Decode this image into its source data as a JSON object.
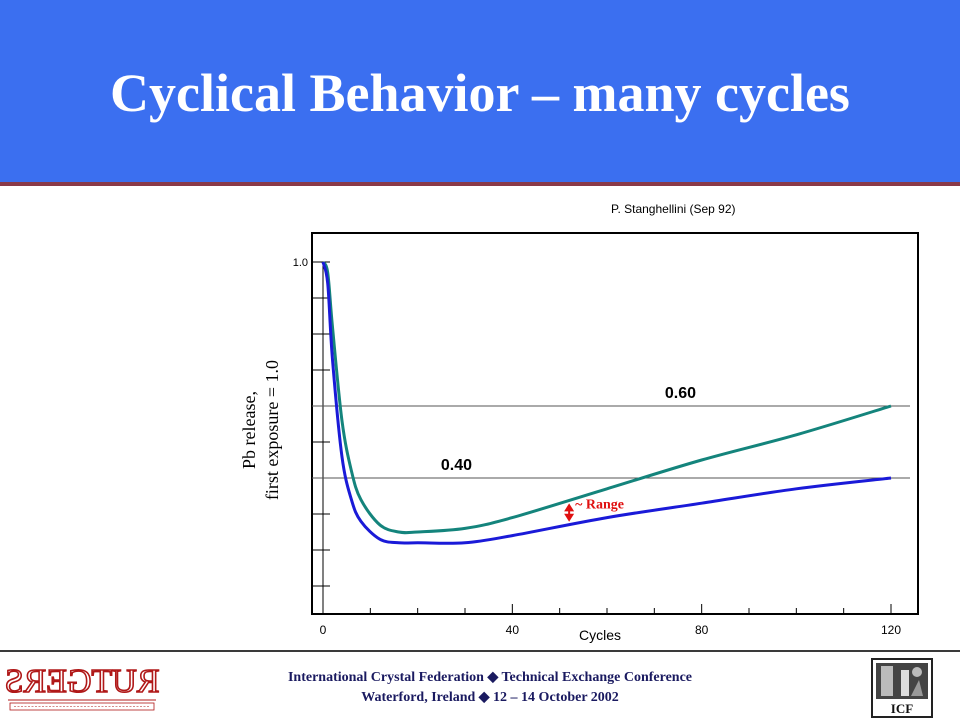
{
  "header": {
    "title": "Cyclical Behavior – many cycles"
  },
  "source_note": "P. Stanghellini (Sep 92)",
  "chart_data": {
    "type": "line",
    "xlabel": "Cycles",
    "ylabel": [
      "Pb release,",
      "first exposure = 1.0"
    ],
    "x_ticks": [
      "0",
      "40",
      "80",
      "120"
    ],
    "y_ticks": [
      "1.0"
    ],
    "xlim": [
      0,
      120
    ],
    "ylim": [
      0.0,
      1.0
    ],
    "grid": false,
    "reference_lines": [
      {
        "label": "0.60",
        "y": 0.6
      },
      {
        "label": "0.40",
        "y": 0.4
      }
    ],
    "series": [
      {
        "color": "#14847c",
        "x": [
          0,
          1,
          2,
          4,
          6,
          8,
          12,
          16,
          20,
          30,
          40,
          60,
          80,
          100,
          120
        ],
        "y": [
          1.0,
          0.97,
          0.82,
          0.56,
          0.42,
          0.34,
          0.27,
          0.25,
          0.25,
          0.26,
          0.29,
          0.37,
          0.45,
          0.52,
          0.6
        ]
      },
      {
        "color": "#1a1ad8",
        "x": [
          0,
          1,
          2,
          4,
          6,
          8,
          12,
          16,
          20,
          30,
          40,
          60,
          80,
          100,
          120
        ],
        "y": [
          1.0,
          0.94,
          0.73,
          0.46,
          0.34,
          0.28,
          0.23,
          0.22,
          0.22,
          0.22,
          0.24,
          0.29,
          0.33,
          0.37,
          0.4
        ]
      }
    ],
    "annotation": {
      "text": "~ Range",
      "color": "#e01010",
      "x": 52
    }
  },
  "footer": {
    "line1": "International Crystal Federation  ◆  Technical Exchange Conference",
    "line2": "Waterford, Ireland  ◆  12 – 14 October 2002",
    "logo_left_text": "RUTGERS",
    "logo_right_text": "ICF"
  },
  "colors": {
    "title_band": "#3b6ff0",
    "title_border": "#8a3a48",
    "footer_text": "#1a1a60"
  }
}
